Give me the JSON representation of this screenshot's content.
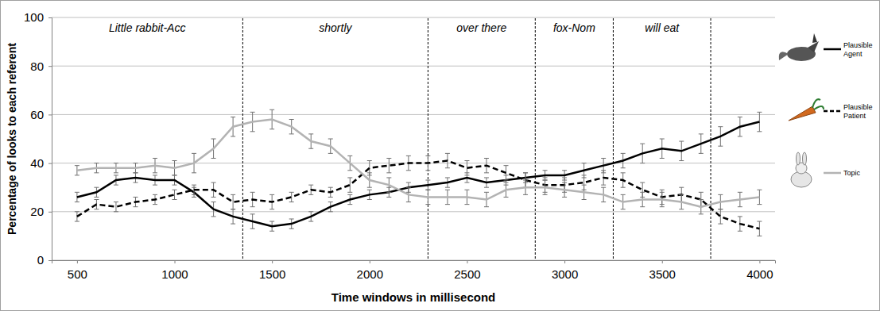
{
  "chart_data": {
    "type": "line",
    "x_label": "Time windows in millisecond",
    "y_label": "Percentage of looks to each referent",
    "x": [
      500,
      600,
      700,
      800,
      900,
      1000,
      1100,
      1200,
      1300,
      1400,
      1500,
      1600,
      1700,
      1800,
      1900,
      2000,
      2100,
      2200,
      2300,
      2400,
      2500,
      2600,
      2700,
      2800,
      2900,
      3000,
      3100,
      3200,
      3300,
      3400,
      3500,
      3600,
      3700,
      3800,
      3900,
      4000
    ],
    "xlim": [
      370,
      4080
    ],
    "xticks": [
      500,
      1000,
      1500,
      2000,
      2500,
      3000,
      3500,
      4000
    ],
    "ylim": [
      0,
      100
    ],
    "yticks": [
      0,
      20,
      40,
      60,
      80,
      100
    ],
    "grid": true,
    "boundaries": [
      1350,
      2300,
      2850,
      3250,
      3750
    ],
    "region_labels": [
      "Little rabbit-Acc",
      "shortly",
      "over there",
      "fox-Nom",
      "will eat"
    ],
    "series": [
      {
        "name": "Plausible Agent",
        "color": "#000000",
        "line_style": "solid",
        "values": [
          26,
          28,
          33,
          34,
          33,
          33,
          28,
          21,
          18,
          16,
          14,
          15,
          18,
          22,
          25,
          27,
          28,
          30,
          31,
          32,
          34,
          32,
          33,
          34,
          35,
          35,
          37,
          39,
          41,
          44,
          46,
          45,
          48,
          51,
          55,
          57
        ],
        "errors": [
          2,
          2,
          2,
          2,
          2,
          2,
          2,
          3,
          3,
          3,
          2,
          2,
          2,
          2,
          2,
          2,
          2,
          2,
          2,
          2,
          2,
          2,
          2,
          2,
          2,
          2,
          3,
          3,
          3,
          4,
          4,
          4,
          4,
          4,
          4,
          4
        ]
      },
      {
        "name": "Plausible Patient",
        "color": "#000000",
        "line_style": "dashed",
        "values": [
          18,
          23,
          22,
          24,
          25,
          27,
          29,
          29,
          24,
          25,
          24,
          26,
          29,
          28,
          31,
          38,
          39,
          40,
          40,
          41,
          38,
          39,
          36,
          33,
          31,
          31,
          32,
          34,
          33,
          29,
          26,
          27,
          25,
          18,
          15,
          13
        ],
        "errors": [
          2,
          2,
          2,
          2,
          2,
          2,
          2,
          3,
          3,
          3,
          3,
          2,
          2,
          2,
          3,
          3,
          3,
          3,
          3,
          3,
          3,
          3,
          3,
          3,
          3,
          3,
          3,
          3,
          3,
          3,
          3,
          3,
          3,
          3,
          3,
          3
        ]
      },
      {
        "name": "Topic",
        "color": "#b3b3b3",
        "line_style": "solid",
        "values": [
          37,
          38,
          38,
          38,
          39,
          38,
          40,
          46,
          55,
          57,
          58,
          55,
          49,
          47,
          40,
          33,
          31,
          27,
          26,
          26,
          26,
          25,
          29,
          30,
          30,
          29,
          28,
          27,
          24,
          25,
          25,
          24,
          22,
          24,
          25,
          26
        ],
        "errors": [
          2,
          2,
          2,
          2,
          3,
          3,
          4,
          4,
          4,
          4,
          4,
          3,
          3,
          3,
          3,
          3,
          3,
          3,
          3,
          3,
          3,
          3,
          3,
          3,
          3,
          3,
          3,
          3,
          3,
          3,
          3,
          3,
          3,
          3,
          3,
          3
        ]
      }
    ]
  }
}
